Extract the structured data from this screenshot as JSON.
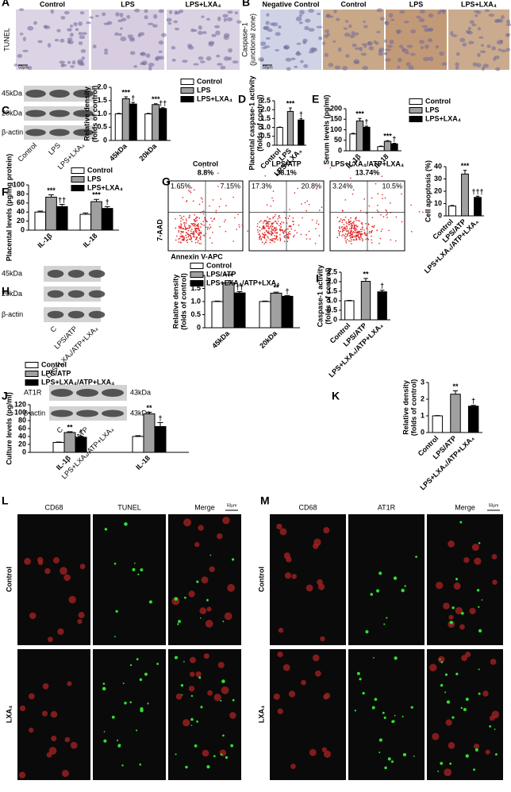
{
  "micrographs": [
    {
      "panel": "A",
      "row_label": "TUNEL",
      "columns": [
        "Control",
        "LPS",
        "LPS+LXA₄"
      ],
      "scale": "50μm"
    },
    {
      "panel": "B",
      "row_label": "Caspase-1",
      "row_sublabel": "(junctional zone)",
      "columns": [
        "Negative Control",
        "Control",
        "LPS",
        "LPS+LXA₄"
      ],
      "scale": "50μm"
    }
  ],
  "blots": [
    {
      "rows": [
        "45kDa",
        "20kDa",
        "β-actin"
      ],
      "lanes": [
        "Control",
        "LPS",
        "LPS+LXA₄"
      ]
    },
    {
      "rows": [
        "45kDa",
        "20kDa",
        "β-actin"
      ],
      "lanes": [
        "C",
        "LPS/ATP",
        "LPS+LXA₄/ATP+LXA₄"
      ]
    },
    {
      "rows": [
        "AT1R",
        "β-actin"
      ],
      "right_labels": [
        "43kDa",
        "43kDa"
      ],
      "lanes": [
        "C",
        "LPS/ATP",
        "LPS+LXA₄/ATP+LXA₄"
      ]
    }
  ],
  "flow_cytometry": {
    "x_label": "Annexin V-APC",
    "y_label": "7-AAD",
    "plots": [
      {
        "title": "Control",
        "total": "8.8%",
        "quadrants": [
          "1.65%",
          "7.15%"
        ]
      },
      {
        "title": "LPS/ATP",
        "total": "38.1%",
        "quadrants": [
          "17.3%",
          "20.8%"
        ]
      },
      {
        "title": "LPS+LXA₄/ATP+LXA₄",
        "total": "13.74%",
        "quadrants": [
          "3.24%",
          "10.5%"
        ]
      }
    ]
  },
  "fluorescence": [
    {
      "panel": "L",
      "headers": [
        {
          "text": "CD68",
          "color": "#e02020"
        },
        {
          "text": "TUNEL",
          "color": "#22c022"
        },
        {
          "text": "Merge",
          "color": "#000000"
        }
      ],
      "rows": [
        "Control",
        "LXA₄"
      ],
      "scale": "50μm"
    },
    {
      "panel": "M",
      "headers": [
        {
          "text": "CD68",
          "color": "#e02020"
        },
        {
          "text": "AT1R",
          "color": "#22c022"
        },
        {
          "text": "Merge",
          "color": "#000000"
        }
      ],
      "rows": [
        "Control",
        "LXA₄"
      ],
      "scale": "50μm"
    }
  ],
  "chart_data": [
    {
      "type": "bar",
      "panel": "C",
      "ylabel": [
        "Relative density",
        "(folds of control)"
      ],
      "categories": [
        "45kDa",
        "20kDa"
      ],
      "series": [
        {
          "name": "Control",
          "color": "#ffffff",
          "values": [
            1,
            1
          ],
          "errors": [
            0.02,
            0.02
          ]
        },
        {
          "name": "LPS",
          "color": "#a0a0a0",
          "values": [
            1.57,
            1.35
          ],
          "errors": [
            0.07,
            0.03
          ],
          "annotations": [
            "***",
            "***"
          ]
        },
        {
          "name": "LPS+LXA₄",
          "color": "#000000",
          "values": [
            1.37,
            1.2
          ],
          "errors": [
            0.06,
            0.03
          ],
          "annotations": [
            "†",
            "††"
          ]
        }
      ],
      "ylim": [
        0,
        2.0
      ],
      "yticks": [
        0,
        0.5,
        {
          "value": 1.0,
          "label": "1.0"
        },
        1.5,
        {
          "value": 2.0,
          "label": "2.0"
        }
      ]
    },
    {
      "type": "bar",
      "panel": "D",
      "ylabel": [
        "Placental caspase-1 activity",
        "(folds of control)"
      ],
      "categories": [
        "Control",
        "LPS",
        "LPS+LXA₄"
      ],
      "values": [
        1,
        1.9,
        1.42
      ],
      "errors": [
        0.02,
        0.2,
        0.08
      ],
      "colors": [
        "#ffffff",
        "#a0a0a0",
        "#000000"
      ],
      "annotations": [
        null,
        "***",
        "†"
      ],
      "ylim": [
        0,
        2.5
      ],
      "yticks": [
        0,
        0.5,
        {
          "value": 1.0,
          "label": "1.0"
        },
        1.5,
        {
          "value": 2.0,
          "label": "2.0"
        },
        2.5
      ]
    },
    {
      "type": "bar",
      "panel": "E",
      "ylabel": [
        "Serum levels (pg/ml)"
      ],
      "categories": [
        "IL-1β",
        "IL-18"
      ],
      "series": [
        {
          "name": "Control",
          "color": "#ffffff",
          "values": [
            80,
            20
          ],
          "errors": [
            3,
            2
          ]
        },
        {
          "name": "LPS",
          "color": "#a0a0a0",
          "values": [
            142,
            45
          ],
          "errors": [
            12,
            3
          ],
          "annotations": [
            "***",
            "***"
          ]
        },
        {
          "name": "LPS+LXA₄",
          "color": "#000000",
          "values": [
            112,
            33
          ],
          "errors": [
            5,
            3
          ],
          "annotations": [
            "†",
            "†"
          ]
        }
      ],
      "ylim": [
        0,
        200
      ],
      "yticks": [
        0,
        50,
        100,
        150,
        200
      ]
    },
    {
      "type": "bar",
      "panel": "F",
      "ylabel": [
        "Placental levels (pg/mg protein)"
      ],
      "categories": [
        "IL-1β",
        "IL-18"
      ],
      "series": [
        {
          "name": "Control",
          "color": "#ffffff",
          "values": [
            40,
            35
          ],
          "errors": [
            2,
            3
          ]
        },
        {
          "name": "LPS",
          "color": "#a0a0a0",
          "values": [
            73,
            63
          ],
          "errors": [
            5,
            5
          ],
          "annotations": [
            "***",
            "***"
          ]
        },
        {
          "name": "LPS+LXA₄",
          "color": "#000000",
          "values": [
            52,
            48
          ],
          "errors": [
            5,
            4
          ],
          "annotations": [
            "††",
            "†"
          ]
        }
      ],
      "ylim": [
        0,
        100
      ],
      "yticks": [
        0,
        20,
        40,
        60,
        80,
        100
      ]
    },
    {
      "type": "bar",
      "panel": "G",
      "ylabel": [
        "Cell apoptosis (%)"
      ],
      "categories": [
        "Control",
        "LPS/ATP",
        "LPS+LXA₄/ATP+LXA₄"
      ],
      "values": [
        8,
        34,
        15
      ],
      "errors": [
        0.5,
        3,
        1
      ],
      "colors": [
        "#ffffff",
        "#a0a0a0",
        "#000000"
      ],
      "annotations": [
        null,
        "***",
        "†††"
      ],
      "ylim": [
        0,
        40
      ],
      "yticks": [
        0,
        10,
        20,
        30,
        40
      ]
    },
    {
      "type": "bar",
      "panel": "H",
      "ylabel": [
        "Relative density",
        "(folds of control)"
      ],
      "categories": [
        "45kDa",
        "20kDa"
      ],
      "series": [
        {
          "name": "Control",
          "color": "#ffffff",
          "values": [
            1,
            1
          ],
          "errors": [
            0.02,
            0.02
          ]
        },
        {
          "name": "LPS/ATP",
          "color": "#a0a0a0",
          "values": [
            1.72,
            1.32
          ],
          "errors": [
            0.08,
            0.04
          ],
          "annotations": [
            "***",
            "**"
          ]
        },
        {
          "name": "LPS+LXA₄/ATP+LXA₄",
          "color": "#000000",
          "values": [
            1.33,
            1.2
          ],
          "errors": [
            0.05,
            0.03
          ],
          "annotations": [
            "††",
            "†"
          ]
        }
      ],
      "ylim": [
        0,
        2.0
      ],
      "yticks": [
        0,
        0.5,
        {
          "value": 1.0,
          "label": "1.0"
        },
        1.5,
        {
          "value": 2.0,
          "label": "2.0"
        }
      ]
    },
    {
      "type": "bar",
      "panel": "I",
      "ylabel": [
        "Caspase-1 activity",
        "(folds of control)"
      ],
      "categories": [
        "Control",
        "LPS/ATP",
        "LPS+LXA₄/ATP+LXA₄"
      ],
      "values": [
        1,
        2.02,
        1.47
      ],
      "errors": [
        0.02,
        0.15,
        0.08
      ],
      "colors": [
        "#ffffff",
        "#a0a0a0",
        "#000000"
      ],
      "annotations": [
        null,
        "**",
        "†"
      ],
      "ylim": [
        0,
        2.5
      ],
      "yticks": [
        0,
        0.5,
        {
          "value": 1.0,
          "label": "1.0"
        },
        1.5,
        {
          "value": 2.0,
          "label": "2.0"
        },
        2.5
      ]
    },
    {
      "type": "bar",
      "panel": "J",
      "ylabel": [
        "Culture levels (pg/ml)"
      ],
      "categories": [
        "IL-1β",
        "IL-18"
      ],
      "series": [
        {
          "name": "Control",
          "color": "#ffffff",
          "values": [
            25,
            40
          ],
          "errors": [
            1,
            2
          ]
        },
        {
          "name": "LPS/ATP",
          "color": "#a0a0a0",
          "values": [
            50,
            97
          ],
          "errors": [
            2,
            4
          ],
          "annotations": [
            "**",
            "**"
          ]
        },
        {
          "name": "LPS+LXA₄/ATP+LXA₄",
          "color": "#000000",
          "values": [
            38,
            65
          ],
          "errors": [
            2,
            10
          ],
          "annotations": [
            "†",
            "†"
          ]
        }
      ],
      "ylim": [
        0,
        120
      ],
      "yticks": [
        0,
        20,
        40,
        60,
        80,
        100,
        120
      ]
    },
    {
      "type": "bar",
      "panel": "K",
      "ylabel": [
        "Relative density",
        "(folds of control)"
      ],
      "categories": [
        "Control",
        "LPS/ATP",
        "LPS+LXA₄/ATP+LXA₄"
      ],
      "values": [
        1,
        2.3,
        1.58
      ],
      "errors": [
        0.02,
        0.2,
        0.05
      ],
      "colors": [
        "#ffffff",
        "#a0a0a0",
        "#000000"
      ],
      "annotations": [
        null,
        "**",
        "†"
      ],
      "ylim": [
        0,
        3
      ],
      "yticks": [
        0,
        1,
        2,
        3
      ]
    }
  ]
}
